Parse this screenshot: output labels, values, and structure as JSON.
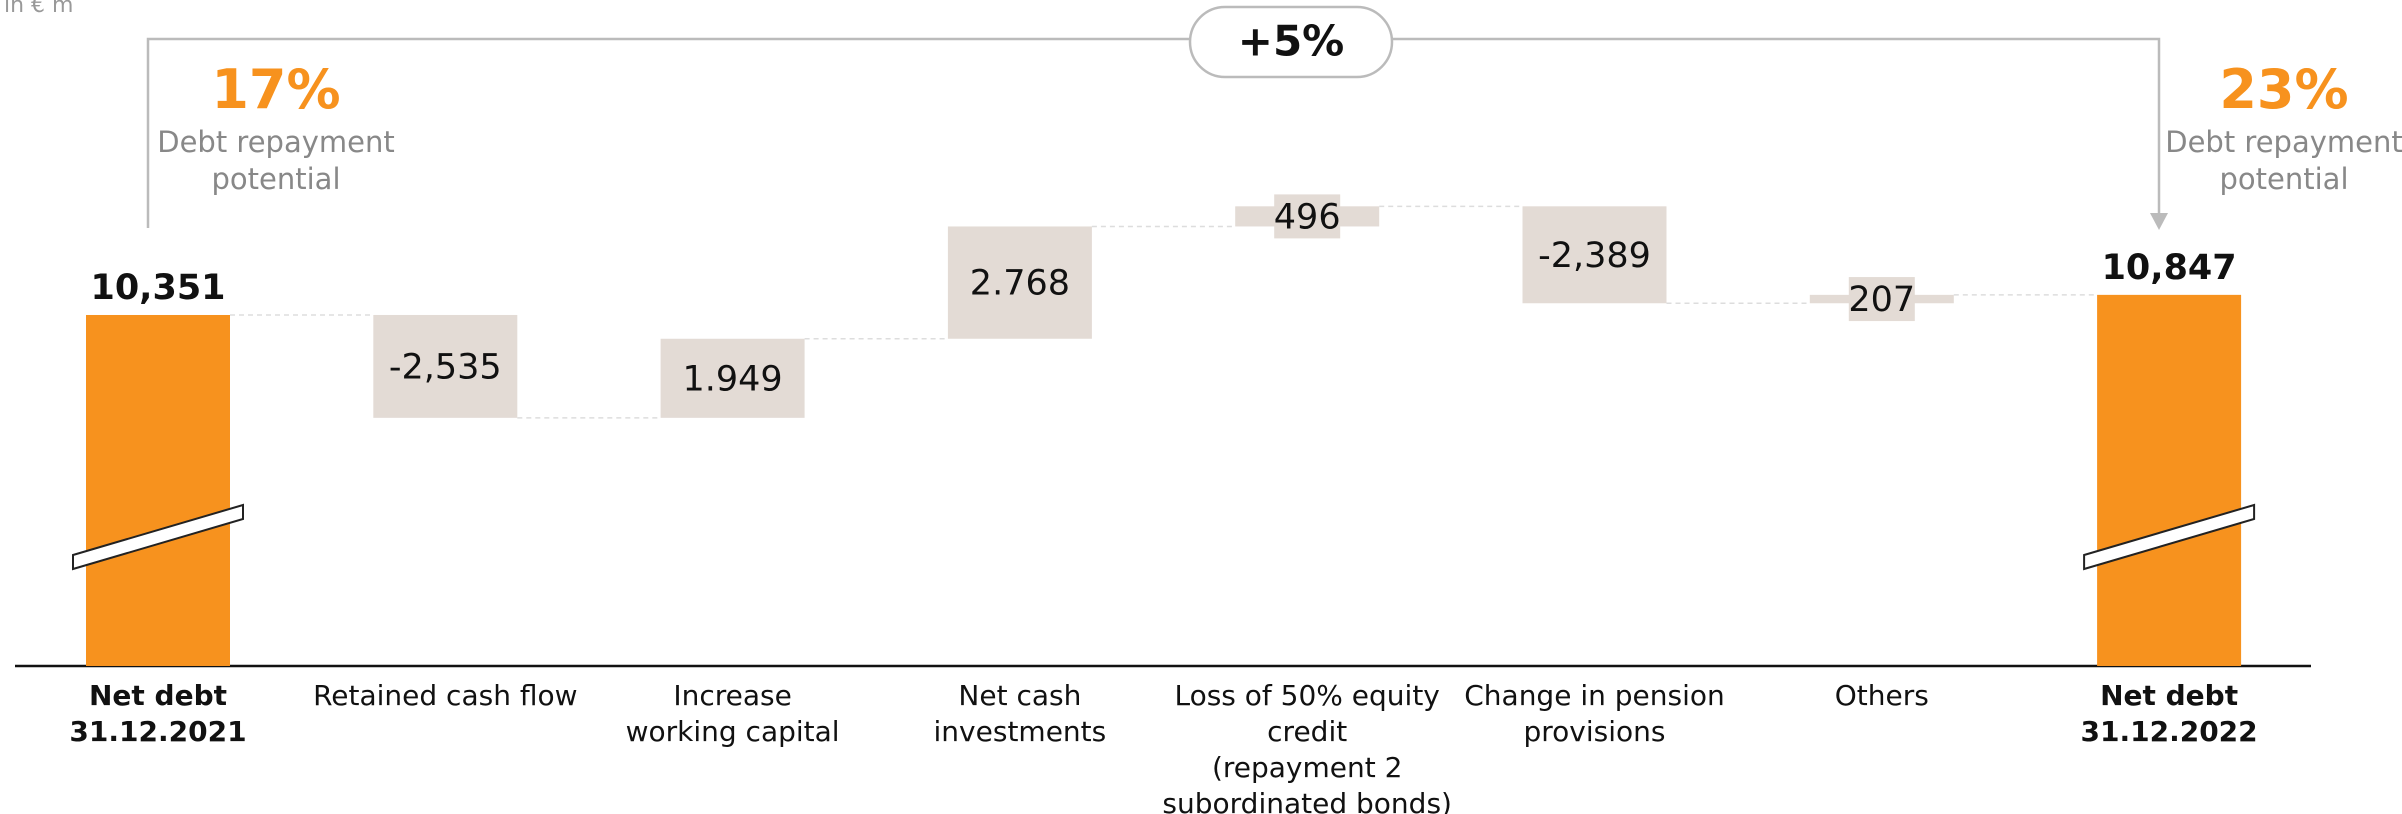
{
  "chart_data": {
    "type": "waterfall",
    "unit_note": "in € m",
    "change_label": "+5%",
    "annotations": [
      {
        "value": "17%",
        "text": "Debt repayment\npotential"
      },
      {
        "value": "23%",
        "text": "Debt repayment\npotential"
      }
    ],
    "categories": [
      "Net debt\n31.12.2021",
      "Retained cash flow",
      "Increase\nworking capital",
      "Net cash\ninvestments",
      "Loss of 50% equity\ncredit\n(repayment 2\nsubordinated bonds)",
      "Change in pension\nprovisions",
      "Others",
      "Net debt\n31.12.2022"
    ],
    "values": [
      10351,
      -2535,
      1949,
      2768,
      496,
      -2389,
      207,
      10847
    ],
    "value_labels": [
      "10,351",
      "-2,535",
      "1.949",
      "2.768",
      "496",
      "-2,389",
      "207",
      "10,847"
    ],
    "bar_kinds": [
      "total",
      "delta",
      "delta",
      "delta",
      "delta",
      "delta",
      "delta",
      "total"
    ],
    "total_color": "#f7921e",
    "delta_color": "#e3dbd5",
    "accent_color": "#f7921e",
    "ylim": [
      1700,
      17350
    ]
  }
}
